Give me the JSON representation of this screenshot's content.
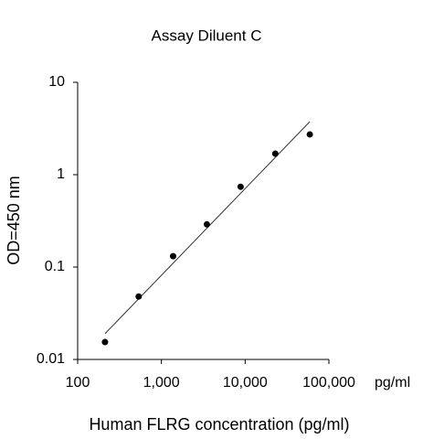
{
  "chart_data": {
    "type": "scatter",
    "title": "Assay Diluent C",
    "x_label": "Human FLRG concentration (pg/ml)",
    "y_label": "OD=450 nm",
    "x_unit": "pg/ml",
    "x_scale": "log",
    "y_scale": "log",
    "x": [
      212,
      535,
      1380,
      3490,
      8830,
      22900,
      59200
    ],
    "values": [
      0.0154,
      0.048,
      0.131,
      0.29,
      0.74,
      1.69,
      2.73
    ],
    "color": "#000000",
    "fit_line": {
      "x": [
        212,
        59200
      ],
      "values": [
        0.019,
        3.75
      ],
      "color": "#333333"
    },
    "xlim": [
      100,
      100000
    ],
    "xticks": [
      100,
      {
        "value": 1000,
        "label": "1,000"
      },
      {
        "value": 10000,
        "label": "10,000"
      },
      {
        "value": 100000,
        "label": "100,000"
      }
    ],
    "ylim": [
      0.01,
      10
    ],
    "yticks": [
      0.01,
      0.1,
      1,
      10
    ]
  }
}
